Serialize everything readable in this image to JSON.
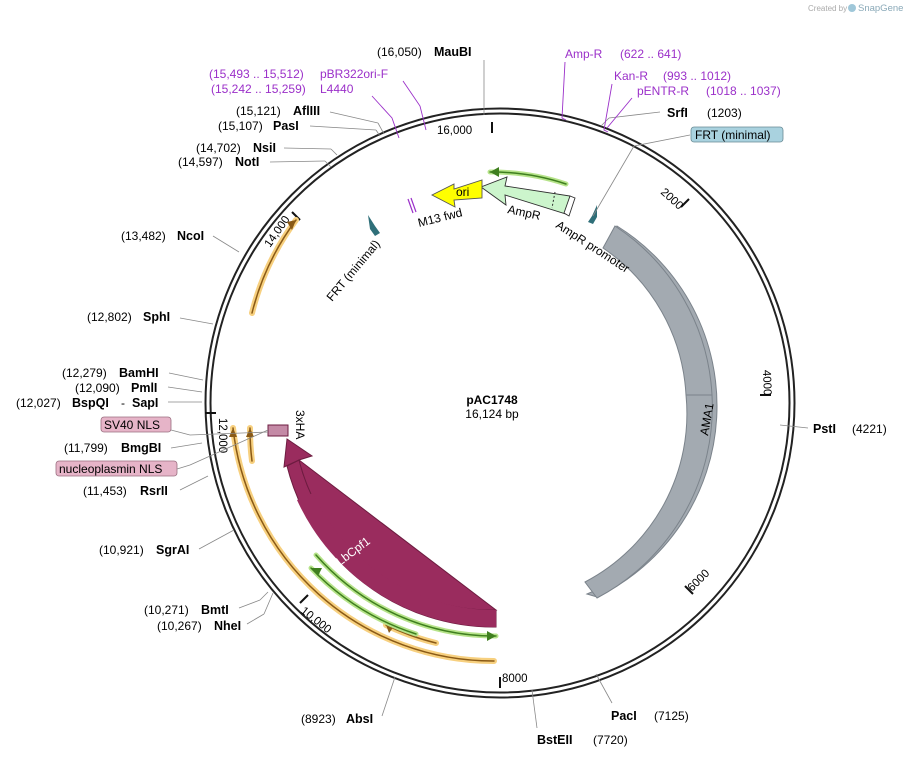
{
  "header": {
    "credit_prefix": "Created by",
    "credit_brand": "SnapGene"
  },
  "plasmid": {
    "name": "pAC1748",
    "size_label": "16,124 bp",
    "length": 16124
  },
  "colors": {
    "primer": "#9b30c9",
    "ama1": "#a3aab1",
    "lbcpf1": "#9a2c5e",
    "ori": "#ffff00",
    "ampr": "#ccf5cc",
    "frt_box": "#a9d2df",
    "nls_box": "#e6b4c8",
    "orf_glow": "#f7d07f"
  },
  "ticks": [
    "2000",
    "4000",
    "6000",
    "8000",
    "10,000",
    "12,000",
    "14,000",
    "16,000"
  ],
  "enzymes": [
    {
      "name": "MauBI",
      "pos": "(16,050)"
    },
    {
      "name": "SrfI",
      "pos": "(1203)"
    },
    {
      "name": "AflIII",
      "pos": "(15,121)"
    },
    {
      "name": "PasI",
      "pos": "(15,107)"
    },
    {
      "name": "NsiI",
      "pos": "(14,702)"
    },
    {
      "name": "NotI",
      "pos": "(14,597)"
    },
    {
      "name": "NcoI",
      "pos": "(13,482)"
    },
    {
      "name": "SphI",
      "pos": "(12,802)"
    },
    {
      "name": "BamHI",
      "pos": "(12,279)"
    },
    {
      "name": "PmlI",
      "pos": "(12,090)"
    },
    {
      "name": "BspQI",
      "pos": "(12,027)",
      "sep": "-",
      "alt": "SapI"
    },
    {
      "name": "BmgBI",
      "pos": "(11,799)"
    },
    {
      "name": "RsrII",
      "pos": "(11,453)"
    },
    {
      "name": "SgrAI",
      "pos": "(10,921)"
    },
    {
      "name": "BmtI",
      "pos": "(10,271)"
    },
    {
      "name": "NheI",
      "pos": "(10,267)"
    },
    {
      "name": "AbsI",
      "pos": "(8923)"
    },
    {
      "name": "BstEII",
      "pos": "(7720)"
    },
    {
      "name": "PacI",
      "pos": "(7125)"
    },
    {
      "name": "PstI",
      "pos": "(4221)"
    }
  ],
  "primers": [
    {
      "name": "Amp-R",
      "pos": "(622 .. 641)"
    },
    {
      "name": "Kan-R",
      "pos": "(993 .. 1012)"
    },
    {
      "name": "pENTR-R",
      "pos": "(1018 .. 1037)"
    },
    {
      "name": "pBR322ori-F",
      "pos": "(15,493 .. 15,512)"
    },
    {
      "name": "L4440",
      "pos": "(15,242 .. 15,259)"
    }
  ],
  "features": {
    "frt_boxed": "FRT (minimal)",
    "frt_inner": "FRT (minimal)",
    "sv40_nls": "SV40 NLS",
    "nucleoplasmin_nls": "nucleoplasmin NLS",
    "ori": "ori",
    "ampr": "AmpR",
    "ampr_promoter": "AmpR promoter",
    "m13_fwd": "M13 fwd",
    "ama1": "AMA1",
    "lbcpf1": "LbCpf1",
    "three_xha": "3xHA"
  }
}
